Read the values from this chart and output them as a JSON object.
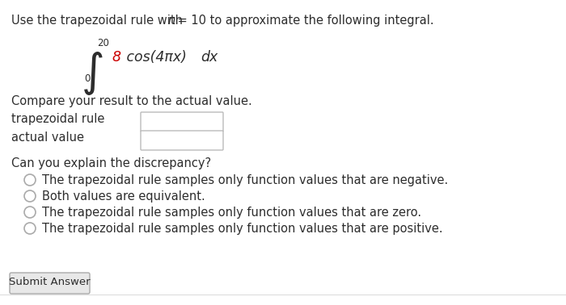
{
  "bg_color": "#ffffff",
  "text_color": "#2d2d2d",
  "red_color": "#cc0000",
  "gray_color": "#999999",
  "line1a": "Use the trapezoidal rule with ",
  "line1b": "n",
  "line1c": " = 10 to approximate the following integral.",
  "integral_upper": "20",
  "integral_lower": "0",
  "compare_text": "Compare your result to the actual value.",
  "label1": "trapezoidal rule",
  "label2": "actual value",
  "discrepancy_text": "Can you explain the discrepancy?",
  "options": [
    "The trapezoidal rule samples only function values that are negative.",
    "Both values are equivalent.",
    "The trapezoidal rule samples only function values that are zero.",
    "The trapezoidal rule samples only function values that are positive."
  ],
  "submit_label": "Submit Answer",
  "fs_main": 10.5,
  "fs_integral": 12.5,
  "fs_small": 8.5
}
